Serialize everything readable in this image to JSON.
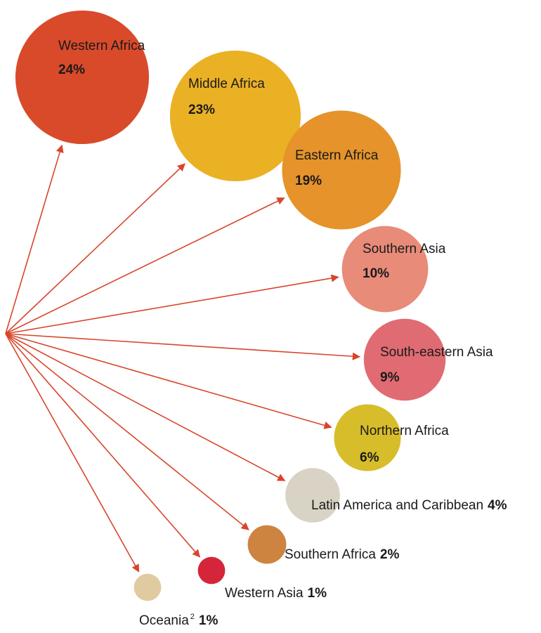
{
  "chart_data": {
    "type": "bubble",
    "categories": [
      "Western Africa",
      "Middle Africa",
      "Eastern Africa",
      "Southern Asia",
      "South-eastern Asia",
      "Northern Africa",
      "Latin America and Caribbean",
      "Southern Africa",
      "Western Asia",
      "Oceania"
    ],
    "superscripts": [
      null,
      null,
      null,
      null,
      null,
      null,
      null,
      null,
      null,
      "2"
    ],
    "values": [
      24,
      23,
      19,
      10,
      9,
      6,
      4,
      2,
      1,
      1
    ],
    "value_labels": [
      "24%",
      "23%",
      "19%",
      "10%",
      "9%",
      "6%",
      "4%",
      "2%",
      "1%",
      "1%"
    ],
    "colors": [
      "#d94a2b",
      "#ebb125",
      "#e5932a",
      "#e88b79",
      "#e06b72",
      "#d7bd2a",
      "#d8d3c5",
      "#cd8440",
      "#d4253a",
      "#e0cba0"
    ],
    "arrow_color": "#d9452b"
  }
}
